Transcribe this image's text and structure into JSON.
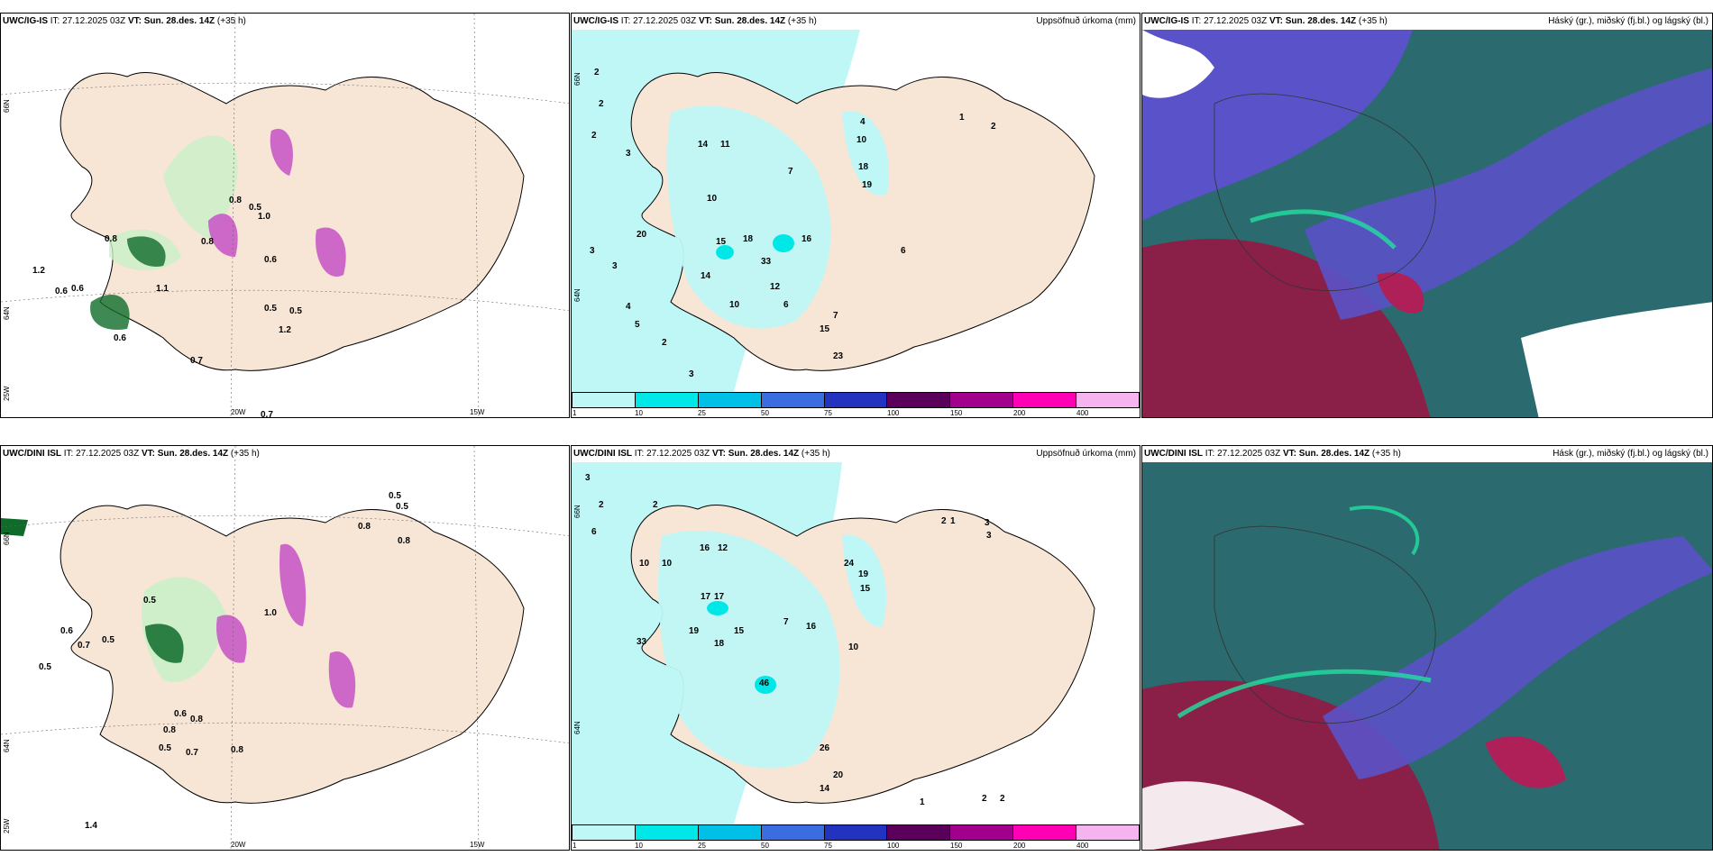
{
  "panels": {
    "top_wind": {
      "model": "UWC/IG-IS",
      "it_label": "IT:",
      "it": "27.12.2025 03Z",
      "vt_label": "VT:",
      "vt": "Sun. 28.des. 14Z",
      "lead": "(+35 h)"
    },
    "top_precip": {
      "model": "UWC/IG-IS",
      "it_label": "IT:",
      "it": "27.12.2025 03Z",
      "vt_label": "VT:",
      "vt": "Sun. 28.des. 14Z",
      "lead": "(+35 h)",
      "right_title": "Uppsöfnuð úrkoma (mm)"
    },
    "top_cloud": {
      "model": "UWC/IG-IS",
      "it_label": "IT:",
      "it": "27.12.2025 03Z",
      "vt_label": "VT:",
      "vt": "Sun. 28.des. 14Z",
      "lead": "(+35 h)",
      "right_title": "Háský (gr.), miðský (fj.bl.) og lágský (bl.)"
    },
    "bot_wind": {
      "model": "UWC/DINI ISL",
      "it_label": "IT:",
      "it": "27.12.2025 03Z",
      "vt_label": "VT:",
      "vt": "Sun. 28.des. 14Z",
      "lead": "(+35 h)"
    },
    "bot_precip": {
      "model": "UWC/DINI ISL",
      "it_label": "IT:",
      "it": "27.12.2025 03Z",
      "vt_label": "VT:",
      "vt": "Sun. 28.des. 14Z",
      "lead": "(+35 h)",
      "right_title": "Uppsöfnuð úrkoma (mm)"
    },
    "bot_cloud": {
      "model": "UWC/DINI ISL",
      "it_label": "IT:",
      "it": "27.12.2025 03Z",
      "vt_label": "VT:",
      "vt": "Sun. 28.des. 14Z",
      "lead": "(+35 h)",
      "right_title": "Hásk (gr.), miðský (fj.bl.) og lágský (bl.)"
    }
  },
  "gridlabels": {
    "lon20": "20W",
    "lon15": "15W",
    "lat66": "66N",
    "lat64": "64N",
    "lon25": "25W"
  },
  "scale": {
    "labels": [
      "1",
      "10",
      "25",
      "50",
      "75",
      "100",
      "150",
      "200",
      "400"
    ],
    "colors": [
      "#bff7f7",
      "#00e7e7",
      "#00c0e8",
      "#3a6ee0",
      "#2233c0",
      "#5a005a",
      "#a0008c",
      "#ff00b4",
      "#f5b4f0"
    ]
  },
  "top_wind_values": [
    "0.8",
    "1.2",
    "0.6",
    "0.6",
    "0.7",
    "0.8",
    "0.8",
    "0.5",
    "1.0",
    "0.6",
    "0.5",
    "0.5",
    "0.6",
    "1.1",
    "1.2",
    "0.7"
  ],
  "bot_wind_values": [
    "0.5",
    "0.5",
    "0.8",
    "0.8",
    "0.5",
    "0.6",
    "0.7",
    "0.5",
    "0.5",
    "1.0",
    "0.8",
    "0.6",
    "0.8",
    "0.5",
    "0.7",
    "0.8",
    "1.4"
  ],
  "top_precip_values": [
    "2",
    "2",
    "2",
    "3",
    "3",
    "3",
    "14",
    "11",
    "7",
    "4",
    "10",
    "18",
    "19",
    "10",
    "20",
    "18",
    "15",
    "33",
    "16",
    "14",
    "12",
    "10",
    "6",
    "4",
    "7",
    "5",
    "2",
    "3",
    "1",
    "2",
    "6",
    "15",
    "23"
  ],
  "bot_precip_values": [
    "3",
    "2",
    "6",
    "2",
    "10",
    "10",
    "16",
    "12",
    "17",
    "17",
    "24",
    "19",
    "15",
    "10",
    "16",
    "19",
    "46",
    "15",
    "7",
    "33",
    "18",
    "26",
    "14",
    "20",
    "3",
    "3",
    "2",
    "1",
    "1",
    "2",
    "2"
  ],
  "colors": {
    "land": "#f7e6d6",
    "precip_light": "#bff7f7",
    "green_light": "#c8f0c8",
    "green_dark": "#0f6b2a",
    "magenta": "#c85ac8"
  }
}
